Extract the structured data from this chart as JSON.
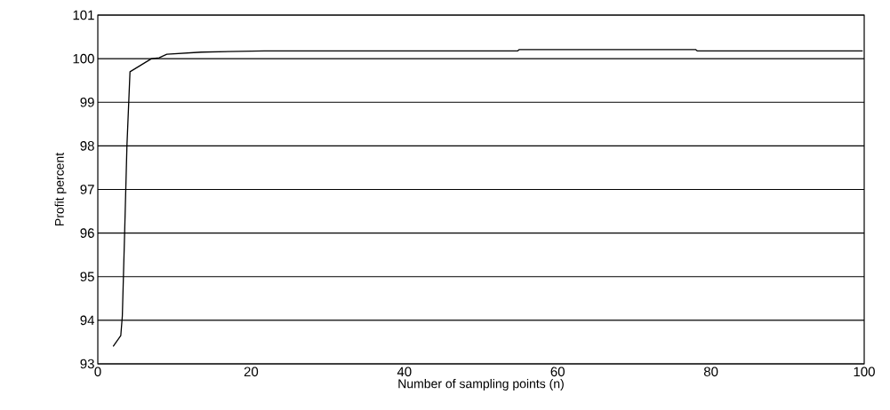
{
  "chart_data": {
    "type": "line",
    "xlabel": "Number of sampling points (n)",
    "ylabel": "Profit percent",
    "x": [
      2,
      3,
      3.2,
      3.5,
      3.8,
      4.2,
      7,
      8,
      9,
      13.5,
      21.7,
      54.8,
      55,
      78,
      78.2,
      99.8
    ],
    "series": [
      {
        "color": "#000000",
        "values": [
          93.4,
          93.65,
          94.1,
          96,
          98,
          99.7,
          100.0,
          100.02,
          100.1,
          100.15,
          100.18,
          100.18,
          100.21,
          100.21,
          100.18,
          100.18
        ]
      }
    ],
    "xlim": [
      0,
      100
    ],
    "ylim": [
      93,
      101
    ],
    "xticks": [
      0,
      20,
      40,
      60,
      80,
      100
    ],
    "yticks": [
      93,
      94,
      95,
      96,
      97,
      98,
      99,
      100,
      101
    ],
    "grid": "y",
    "marker": "none",
    "line_style": "solid"
  }
}
